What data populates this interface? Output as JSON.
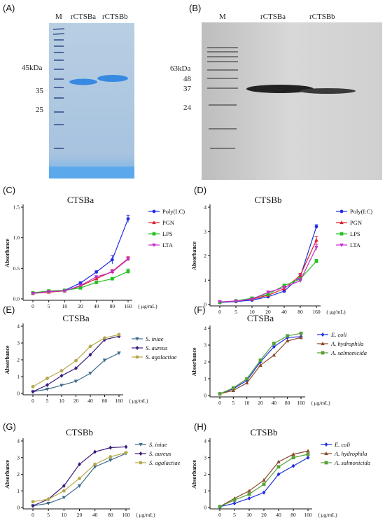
{
  "panels": {
    "A": {
      "label": "(A)",
      "lanes": [
        "M",
        "rCTSBa",
        "rCTSBb"
      ],
      "marker": "45kDa",
      "markers": [
        "35",
        "25"
      ]
    },
    "B": {
      "label": "(B)",
      "lanes": [
        "M",
        "rCTSBa",
        "rCTSBb"
      ],
      "markers": [
        "63kDa",
        "48",
        "37",
        "24"
      ]
    },
    "C": {
      "label": "(C)"
    },
    "D": {
      "label": "(D)"
    },
    "E": {
      "label": "(E)"
    },
    "F": {
      "label": "(F)"
    },
    "G": {
      "label": "(G)"
    },
    "H": {
      "label": "(H)"
    }
  },
  "colors": {
    "gelA_bg": "#a9c6e0",
    "gelA_band": "#3a86d9",
    "gelA_stain": "#4fa0e6",
    "gelB_bg": "#d2d2d2",
    "gelB_band": "#2b2b2b",
    "blue": "#1f2fe0",
    "red": "#e0202a",
    "green": "#22c21f",
    "magenta": "#c12ec9",
    "slate": "#3e6c8c",
    "purple": "#3a1a7a",
    "olive": "#b5a84a",
    "brown": "#8b4a2a",
    "mgreen": "#57a03a"
  },
  "chart_data": [
    {
      "id": "C",
      "type": "line",
      "title": "CTSBa",
      "categories": [
        "0",
        "5",
        "10",
        "20",
        "40",
        "80",
        "160"
      ],
      "x_unit": "μg/mL",
      "ylabel": "Absorbance",
      "ylim": [
        0,
        1.5
      ],
      "yticks": [
        "0.0",
        "0.5",
        "1.0",
        "1.5"
      ],
      "legend": "right",
      "error_bars": true,
      "series": [
        {
          "name": "Poly(I:C)",
          "color": "#1f2fe0",
          "marker": "circle",
          "values": [
            0.1,
            0.12,
            0.14,
            0.26,
            0.44,
            0.64,
            1.31
          ],
          "err": [
            0.01,
            0.01,
            0.01,
            0.02,
            0.02,
            0.07,
            0.06
          ]
        },
        {
          "name": "PGN",
          "color": "#e0202a",
          "marker": "triangle",
          "values": [
            0.09,
            0.11,
            0.13,
            0.21,
            0.33,
            0.45,
            0.66
          ],
          "err": [
            0.01,
            0.01,
            0.01,
            0.02,
            0.02,
            0.03,
            0.03
          ]
        },
        {
          "name": "LPS",
          "color": "#22c21f",
          "marker": "square",
          "values": [
            0.1,
            0.13,
            0.14,
            0.18,
            0.27,
            0.33,
            0.45
          ],
          "err": [
            0.01,
            0.01,
            0.01,
            0.02,
            0.02,
            0.02,
            0.04
          ]
        },
        {
          "name": "LTA",
          "color": "#c12ec9",
          "marker": "tri-down",
          "values": [
            0.09,
            0.12,
            0.13,
            0.22,
            0.36,
            0.44,
            0.65
          ],
          "err": [
            0.01,
            0.01,
            0.01,
            0.02,
            0.02,
            0.03,
            0.03
          ]
        }
      ]
    },
    {
      "id": "D",
      "type": "line",
      "title": "CTSBb",
      "categories": [
        "0",
        "5",
        "10",
        "20",
        "40",
        "80",
        "160"
      ],
      "x_unit": "μg/mL",
      "ylabel": "Absorbance",
      "ylim": [
        0,
        4
      ],
      "yticks": [
        "0",
        "1",
        "2",
        "3",
        "4"
      ],
      "legend": "right",
      "error_bars": true,
      "series": [
        {
          "name": "Poly(I:C)",
          "color": "#1f2fe0",
          "marker": "circle",
          "values": [
            0.08,
            0.12,
            0.18,
            0.32,
            0.55,
            1.15,
            3.2
          ],
          "err": [
            0.02,
            0.02,
            0.03,
            0.04,
            0.05,
            0.08,
            0.08
          ]
        },
        {
          "name": "PGN",
          "color": "#e0202a",
          "marker": "triangle",
          "values": [
            0.1,
            0.14,
            0.22,
            0.38,
            0.65,
            1.2,
            2.65
          ],
          "err": [
            0.02,
            0.02,
            0.03,
            0.05,
            0.06,
            0.08,
            0.15
          ]
        },
        {
          "name": "LPS",
          "color": "#22c21f",
          "marker": "square",
          "values": [
            0.09,
            0.15,
            0.26,
            0.42,
            0.78,
            1.05,
            1.78
          ],
          "err": [
            0.02,
            0.02,
            0.03,
            0.05,
            0.06,
            0.07,
            0.08
          ]
        },
        {
          "name": "LTA",
          "color": "#c12ec9",
          "marker": "tri-down",
          "values": [
            0.11,
            0.14,
            0.22,
            0.5,
            0.7,
            0.98,
            2.35
          ],
          "err": [
            0.02,
            0.02,
            0.03,
            0.06,
            0.06,
            0.08,
            0.12
          ]
        }
      ]
    },
    {
      "id": "E",
      "type": "line",
      "title": "CTSBa",
      "categories": [
        "0",
        "5",
        "10",
        "20",
        "40",
        "80",
        "160"
      ],
      "x_unit": "μg/mL",
      "ylabel": "Absorbance",
      "ylim": [
        0,
        4
      ],
      "yticks": [
        "0",
        "1",
        "2",
        "3",
        "4"
      ],
      "legend": "right",
      "legend_italic": true,
      "error_bars": false,
      "series": [
        {
          "name": "S. iniae",
          "color": "#3e6c8c",
          "marker": "tri-down",
          "values": [
            0.1,
            0.25,
            0.48,
            0.72,
            1.2,
            1.98,
            2.4
          ]
        },
        {
          "name": "S. aureus",
          "color": "#3a1a7a",
          "marker": "diamond",
          "values": [
            0.1,
            0.5,
            1.05,
            1.5,
            2.3,
            3.2,
            3.4
          ]
        },
        {
          "name": "S. agalactiae",
          "color": "#b5a84a",
          "marker": "circle",
          "values": [
            0.4,
            0.9,
            1.35,
            1.95,
            2.8,
            3.3,
            3.5
          ]
        }
      ]
    },
    {
      "id": "F",
      "type": "line",
      "title": "CTSBa",
      "categories": [
        "0",
        "5",
        "10",
        "20",
        "40",
        "80",
        "160"
      ],
      "x_unit": "μg/mL",
      "ylabel": "Absorbance",
      "ylim": [
        0,
        4
      ],
      "yticks": [
        "0",
        "1",
        "2",
        "3",
        "4"
      ],
      "legend": "top-right",
      "legend_italic": true,
      "error_bars": false,
      "series": [
        {
          "name": "E. coli",
          "color": "#1f2fe0",
          "marker": "diamond",
          "values": [
            0.1,
            0.4,
            0.9,
            2.0,
            2.9,
            3.45,
            3.5
          ]
        },
        {
          "name": "A. hydrophila",
          "color": "#8b4a2a",
          "marker": "triangle",
          "values": [
            0.1,
            0.3,
            0.75,
            1.8,
            2.4,
            3.25,
            3.45
          ]
        },
        {
          "name": "A. salmonicida",
          "color": "#57a03a",
          "marker": "square",
          "values": [
            0.1,
            0.45,
            1.0,
            2.1,
            3.1,
            3.55,
            3.7
          ]
        }
      ]
    },
    {
      "id": "G",
      "type": "line",
      "title": "CTSBb",
      "categories": [
        "0",
        "5",
        "10",
        "20",
        "40",
        "80",
        "160"
      ],
      "x_unit": "μg/mL",
      "ylabel": "Absorbance",
      "ylim": [
        0,
        4
      ],
      "yticks": [
        "0",
        "1",
        "2",
        "3",
        "4"
      ],
      "legend": "right",
      "legend_italic": true,
      "error_bars": false,
      "series": [
        {
          "name": "S. iniae",
          "color": "#3e6c8c",
          "marker": "tri-down",
          "values": [
            0.1,
            0.25,
            0.6,
            1.3,
            2.45,
            2.85,
            3.25
          ]
        },
        {
          "name": "S. aureus",
          "color": "#3a1a7a",
          "marker": "diamond",
          "values": [
            0.1,
            0.5,
            1.3,
            2.6,
            3.35,
            3.6,
            3.65
          ]
        },
        {
          "name": "S. agalactiae",
          "color": "#b5a84a",
          "marker": "circle",
          "values": [
            0.35,
            0.5,
            1.0,
            1.75,
            2.6,
            3.05,
            3.3
          ]
        }
      ]
    },
    {
      "id": "H",
      "type": "line",
      "title": "CTSBb",
      "categories": [
        "0",
        "5",
        "10",
        "20",
        "40",
        "80",
        "160"
      ],
      "x_unit": "μg/mL",
      "ylabel": "Absorbance",
      "ylim": [
        0,
        4
      ],
      "yticks": [
        "0",
        "1",
        "2",
        "3",
        "4"
      ],
      "legend": "right",
      "legend_italic": true,
      "error_bars": false,
      "series": [
        {
          "name": "E. coli",
          "color": "#1f2fe0",
          "marker": "diamond",
          "values": [
            0.05,
            0.25,
            0.55,
            0.9,
            2.0,
            2.5,
            3.0
          ]
        },
        {
          "name": "A. hydrophila",
          "color": "#8b4a2a",
          "marker": "triangle",
          "values": [
            0.05,
            0.55,
            1.0,
            1.65,
            2.75,
            3.2,
            3.4
          ]
        },
        {
          "name": "A. salmonicida",
          "color": "#57a03a",
          "marker": "square",
          "values": [
            0.05,
            0.45,
            0.8,
            1.4,
            2.45,
            3.0,
            3.2
          ]
        }
      ]
    }
  ]
}
